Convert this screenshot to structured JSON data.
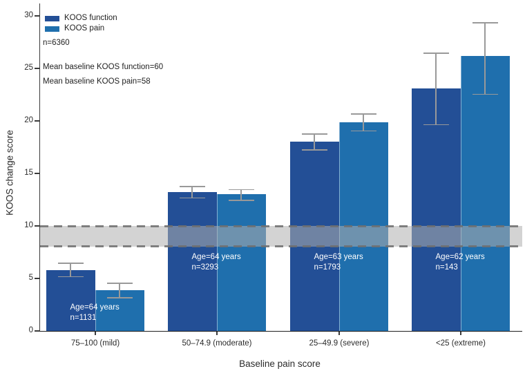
{
  "chart_data": {
    "type": "bar",
    "title": "",
    "xlabel": "Baseline pain score",
    "ylabel": "KOOS change score",
    "ylim": [
      0,
      30
    ],
    "yticks": [
      0,
      5,
      10,
      15,
      20,
      25,
      30
    ],
    "grid": false,
    "legend_position": "top-left",
    "categories": [
      "75–100 (mild)",
      "50–74.9 (moderate)",
      "25–49.9 (severe)",
      "<25 (extreme)"
    ],
    "series": [
      {
        "name": "KOOS function",
        "color": "#234F96",
        "values": [
          5.8,
          13.2,
          18.0,
          23.1
        ],
        "ci_low": [
          5.1,
          12.6,
          17.2,
          19.6
        ],
        "ci_high": [
          6.5,
          13.8,
          18.8,
          26.5
        ]
      },
      {
        "name": "KOOS pain",
        "color": "#1F6FAD",
        "values": [
          3.9,
          13.0,
          19.9,
          26.2
        ],
        "ci_low": [
          3.1,
          12.4,
          19.0,
          22.5
        ],
        "ci_high": [
          4.6,
          13.5,
          20.7,
          29.4
        ]
      }
    ],
    "group_annotations": [
      {
        "line1": "Age=64 years",
        "line2": "n=1131"
      },
      {
        "line1": "Age=64 years",
        "line2": "n=3293"
      },
      {
        "line1": "Age=63 years",
        "line2": "n=1793"
      },
      {
        "line1": "Age=62 years",
        "line2": "n=143"
      }
    ],
    "reference_band": {
      "from": 8,
      "to": 10
    }
  },
  "legend": {
    "items": [
      {
        "label": "KOOS function",
        "color": "#234F96"
      },
      {
        "label": "KOOS pain",
        "color": "#1F6FAD"
      }
    ]
  },
  "notes": {
    "n_total": "n=6360",
    "baseline_function": "Mean baseline KOOS function=60",
    "baseline_pain": "Mean baseline KOOS pain=58"
  }
}
